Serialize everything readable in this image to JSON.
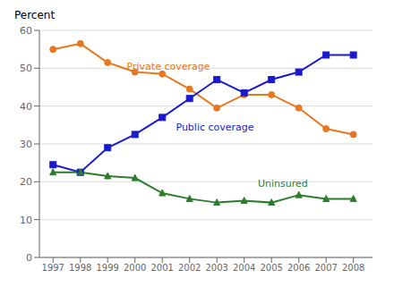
{
  "chart_data": {
    "type": "line",
    "ylabel": "Percent",
    "x": [
      1997,
      1998,
      1999,
      2000,
      2001,
      2002,
      2003,
      2004,
      2005,
      2006,
      2007,
      2008
    ],
    "xlim": [
      1996.5,
      2008.7
    ],
    "xticks": [
      1997,
      1998,
      1999,
      2000,
      2001,
      2002,
      2003,
      2004,
      2005,
      2006,
      2007,
      2008
    ],
    "ylim": [
      0,
      60
    ],
    "yticks": [
      0,
      10,
      20,
      30,
      40,
      50,
      60
    ],
    "grid": true,
    "series": [
      {
        "name": "Private coverage",
        "color": "#e87722",
        "marker": "circle",
        "values": [
          55.0,
          56.5,
          51.5,
          49.0,
          48.5,
          44.5,
          39.5,
          43.0,
          43.0,
          39.5,
          34.0,
          32.5
        ]
      },
      {
        "name": "Public coverage",
        "color": "#1a1acd",
        "marker": "square",
        "values": [
          24.5,
          22.5,
          29.0,
          32.5,
          37.0,
          42.0,
          47.0,
          43.5,
          47.0,
          49.0,
          53.5,
          53.5
        ]
      },
      {
        "name": "Uninsured",
        "color": "#2a7d2a",
        "marker": "triangle",
        "values": [
          22.5,
          22.5,
          21.5,
          21.0,
          17.0,
          15.5,
          14.5,
          15.0,
          14.5,
          16.5,
          15.5,
          15.5
        ]
      }
    ],
    "annotations": [
      {
        "text": "Private coverage",
        "x": 1999.7,
        "y": 50.5,
        "color": "#e87722"
      },
      {
        "text": "Public coverage",
        "x": 2001.5,
        "y": 34.5,
        "color": "#1a1acd"
      },
      {
        "text": "Uninsured",
        "x": 2004.5,
        "y": 19.5,
        "color": "#2a7d2a"
      }
    ]
  }
}
